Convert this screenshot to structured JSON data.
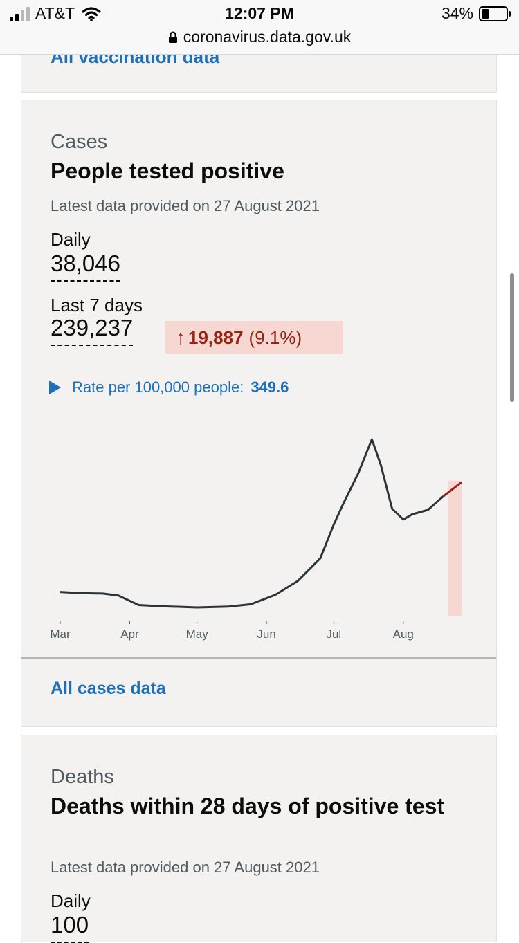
{
  "status": {
    "carrier": "AT&T",
    "time": "12:07 PM",
    "battery": "34%",
    "battery_level": 0.34,
    "url": "coronavirus.data.gov.uk"
  },
  "previous_card": {
    "link": "All vaccination data"
  },
  "cases": {
    "caption": "Cases",
    "title": "People tested positive",
    "latest": "Latest data provided on 27 August 2021",
    "daily_label": "Daily",
    "daily_value": "38,046",
    "week_label": "Last 7 days",
    "week_value": "239,237",
    "change_arrow": "↑",
    "change_value": "19,887",
    "change_pct": "(9.1%)",
    "rate_label": "Rate per 100,000 people:",
    "rate_value": "349.6",
    "all_link": "All cases data"
  },
  "deaths": {
    "caption": "Deaths",
    "title": "Deaths within 28 days of positive test",
    "latest": "Latest data provided on 27 August 2021",
    "daily_label": "Daily",
    "daily_value": "100"
  },
  "colors": {
    "link": "#1d70b8",
    "line": "#2c3438",
    "recent_line": "#942514",
    "recent_fill": "#f6d7d2"
  },
  "chart_data": {
    "type": "line",
    "x_ticks": [
      "Mar",
      "Apr",
      "May",
      "Jun",
      "Jul",
      "Aug"
    ],
    "series": [
      {
        "values": [
          [
            "2021-03-01",
            6000
          ],
          [
            "2021-03-10",
            5700
          ],
          [
            "2021-03-20",
            5600
          ],
          [
            "2021-03-27",
            5100
          ],
          [
            "2021-04-05",
            2700
          ],
          [
            "2021-04-15",
            2400
          ],
          [
            "2021-05-01",
            2100
          ],
          [
            "2021-05-15",
            2300
          ],
          [
            "2021-05-25",
            2900
          ],
          [
            "2021-06-05",
            5300
          ],
          [
            "2021-06-15",
            8800
          ],
          [
            "2021-06-25",
            14500
          ],
          [
            "2021-07-01",
            23000
          ],
          [
            "2021-07-05",
            28000
          ],
          [
            "2021-07-12",
            36000
          ],
          [
            "2021-07-18",
            44500
          ],
          [
            "2021-07-22",
            38000
          ],
          [
            "2021-07-27",
            27000
          ],
          [
            "2021-08-01",
            24300
          ],
          [
            "2021-08-05",
            25600
          ],
          [
            "2021-08-12",
            26700
          ],
          [
            "2021-08-19",
            30200
          ],
          [
            "2021-08-27",
            33700
          ]
        ]
      }
    ],
    "highlight_start": "2021-08-21"
  }
}
